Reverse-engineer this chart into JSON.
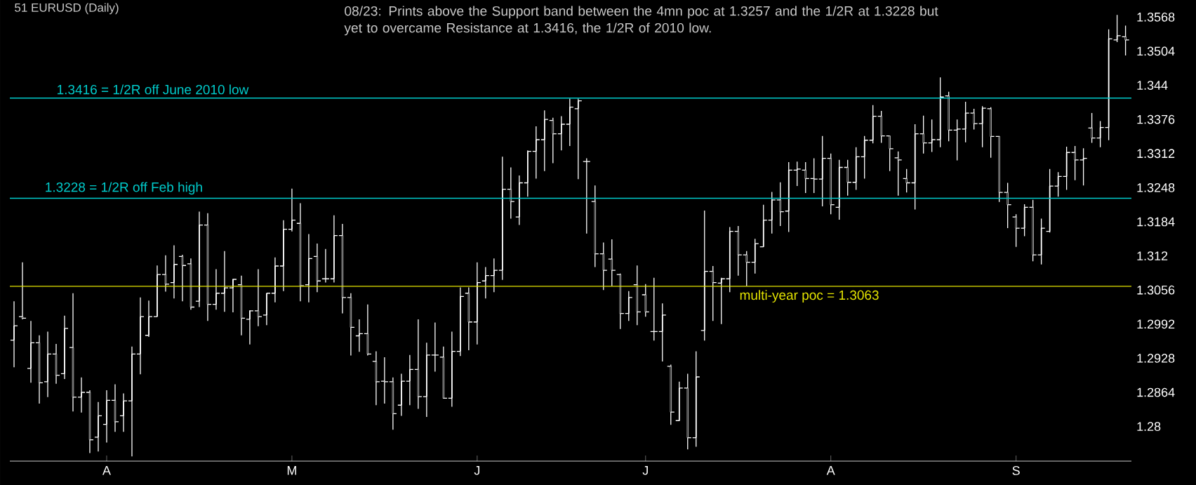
{
  "chart_data": {
    "type": "candlestick",
    "title": "51 EURUSD (Daily)",
    "annotations": [
      "08/23: Prints above the Support band between the 4mn poc at 1.3257 and the 1/2R at 1.3228 but yet to overcame Resistance at  1.3416, the 1/2R of 2010 low."
    ],
    "color": "#ffffff",
    "categories": [
      null,
      null,
      null,
      null,
      null,
      null,
      null,
      null,
      null,
      null,
      null,
      "A",
      null,
      null,
      null,
      null,
      null,
      null,
      null,
      null,
      null,
      null,
      null,
      null,
      null,
      null,
      null,
      null,
      null,
      null,
      null,
      null,
      null,
      "M",
      null,
      null,
      null,
      null,
      null,
      null,
      null,
      null,
      null,
      null,
      null,
      null,
      null,
      null,
      null,
      null,
      null,
      null,
      null,
      null,
      null,
      "J",
      null,
      null,
      null,
      null,
      null,
      null,
      null,
      null,
      null,
      null,
      null,
      null,
      null,
      null,
      null,
      null,
      null,
      null,
      null,
      "J",
      null,
      null,
      null,
      null,
      null,
      null,
      null,
      null,
      null,
      null,
      null,
      null,
      null,
      null,
      null,
      null,
      null,
      null,
      null,
      null,
      null,
      "A",
      null,
      null,
      null,
      null,
      null,
      null,
      null,
      null,
      null,
      null,
      null,
      null,
      null,
      null,
      null,
      null,
      null,
      null,
      null,
      null,
      null,
      "S",
      null,
      null,
      null,
      null,
      null,
      null,
      null,
      null,
      null,
      null,
      null,
      null,
      null
    ],
    "ohlc": [
      [
        1.2962,
        1.3035,
        1.2911,
        1.2989
      ],
      [
        1.3006,
        1.3108,
        1.3001,
        1.3003
      ],
      [
        1.2909,
        1.2998,
        1.2882,
        1.2957
      ],
      [
        1.2957,
        1.2971,
        1.2843,
        1.2882
      ],
      [
        1.2884,
        1.2978,
        1.2855,
        1.2936
      ],
      [
        1.2936,
        1.2955,
        1.288,
        1.2896
      ],
      [
        1.2899,
        1.3008,
        1.2889,
        1.2984
      ],
      [
        1.2948,
        1.305,
        1.2828,
        1.2855
      ],
      [
        1.2855,
        1.2892,
        1.2826,
        1.2864
      ],
      [
        1.2864,
        1.2868,
        1.275,
        1.2775
      ],
      [
        1.278,
        1.2846,
        1.2753,
        1.282
      ],
      [
        1.2804,
        1.2868,
        1.277,
        1.2849
      ],
      [
        1.2849,
        1.2879,
        1.279,
        1.2809
      ],
      [
        1.282,
        1.2862,
        1.279,
        1.2848
      ],
      [
        1.2848,
        1.295,
        1.2744,
        1.2936
      ],
      [
        1.2936,
        1.3042,
        1.2898,
        1.3006
      ],
      [
        1.2971,
        1.3036,
        1.2968,
        1.3006
      ],
      [
        1.3006,
        1.3102,
        1.3006,
        1.3085
      ],
      [
        1.3085,
        1.3121,
        1.3053,
        1.3067
      ],
      [
        1.307,
        1.314,
        1.304,
        1.3104
      ],
      [
        1.3119,
        1.3122,
        1.3035,
        1.3102
      ],
      [
        1.3105,
        1.3115,
        1.3019,
        1.3024
      ],
      [
        1.3035,
        1.3203,
        1.3024,
        1.3178
      ],
      [
        1.3178,
        1.32,
        1.2998,
        1.3029
      ],
      [
        1.3029,
        1.3095,
        1.3019,
        1.305
      ],
      [
        1.305,
        1.3129,
        1.3015,
        1.306
      ],
      [
        1.306,
        1.3077,
        1.3014,
        1.3076
      ],
      [
        1.3066,
        1.3083,
        1.2971,
        1.3003
      ],
      [
        1.3001,
        1.3018,
        1.2954,
        1.3017
      ],
      [
        1.3017,
        1.3095,
        1.2988,
        1.3006
      ],
      [
        1.3009,
        1.305,
        1.299,
        1.305
      ],
      [
        1.305,
        1.3117,
        1.3033,
        1.3101
      ],
      [
        1.3101,
        1.3187,
        1.3054,
        1.317
      ],
      [
        1.317,
        1.3246,
        1.3166,
        1.3187
      ],
      [
        1.3181,
        1.3219,
        1.3035,
        1.3064
      ],
      [
        1.3066,
        1.3161,
        1.3033,
        1.3115
      ],
      [
        1.3119,
        1.3143,
        1.3052,
        1.3073
      ],
      [
        1.3077,
        1.3133,
        1.307,
        1.3077
      ],
      [
        1.3077,
        1.3196,
        1.307,
        1.3158
      ],
      [
        1.3158,
        1.318,
        1.3012,
        1.3042
      ],
      [
        1.3042,
        1.305,
        1.2933,
        1.2986
      ],
      [
        1.297,
        1.3001,
        1.294,
        1.2974
      ],
      [
        1.2974,
        1.3029,
        1.2933,
        1.2936
      ],
      [
        1.2922,
        1.2941,
        1.284,
        1.2884
      ],
      [
        1.2885,
        1.293,
        1.2843,
        1.2884
      ],
      [
        1.2884,
        1.2892,
        1.2794,
        1.2824
      ],
      [
        1.284,
        1.2899,
        1.282,
        1.2885
      ],
      [
        1.2885,
        1.2934,
        1.284,
        1.2907
      ],
      [
        1.2907,
        1.3001,
        1.2833,
        1.2856
      ],
      [
        1.2856,
        1.2957,
        1.2818,
        1.2934
      ],
      [
        1.2934,
        1.2995,
        1.2903,
        1.2934
      ],
      [
        1.293,
        1.295,
        1.2852,
        1.2853
      ],
      [
        1.2853,
        1.2978,
        1.2837,
        1.2941
      ],
      [
        1.2941,
        1.3061,
        1.2932,
        1.3044
      ],
      [
        1.305,
        1.3061,
        1.2943,
        1.2996
      ],
      [
        1.2996,
        1.3108,
        1.2954,
        1.307
      ],
      [
        1.3073,
        1.3099,
        1.304,
        1.3083
      ],
      [
        1.3083,
        1.3115,
        1.3052,
        1.3093
      ],
      [
        1.3093,
        1.3306,
        1.3075,
        1.3245
      ],
      [
        1.3245,
        1.3286,
        1.319,
        1.3222
      ],
      [
        1.3193,
        1.3271,
        1.3178,
        1.3257
      ],
      [
        1.3257,
        1.3318,
        1.3231,
        1.3316
      ],
      [
        1.3316,
        1.3363,
        1.3265,
        1.3338
      ],
      [
        1.3338,
        1.3393,
        1.3279,
        1.3376
      ],
      [
        1.3374,
        1.3379,
        1.3294,
        1.3349
      ],
      [
        1.3349,
        1.3382,
        1.3318,
        1.3367
      ],
      [
        1.3367,
        1.3415,
        1.3326,
        1.3399
      ],
      [
        1.3396,
        1.3415,
        1.3264,
        1.3411
      ],
      [
        1.3297,
        1.3303,
        1.3162,
        1.3297
      ],
      [
        1.3222,
        1.3252,
        1.3099,
        1.3124
      ],
      [
        1.3124,
        1.3145,
        1.3056,
        1.3093
      ],
      [
        1.3114,
        1.3151,
        1.3063,
        1.3093
      ],
      [
        1.3085,
        1.3087,
        1.2983,
        1.3012
      ],
      [
        1.3012,
        1.3054,
        1.2998,
        1.3042
      ],
      [
        1.3066,
        1.3102,
        1.299,
        1.3015
      ],
      [
        1.3047,
        1.3067,
        1.3006,
        1.3015
      ],
      [
        1.2978,
        1.3079,
        1.2961,
        1.2978
      ],
      [
        1.2978,
        1.3031,
        1.2922,
        1.3009
      ],
      [
        1.2913,
        1.2916,
        1.2803,
        1.2827
      ],
      [
        1.2811,
        1.2884,
        1.281,
        1.2872
      ],
      [
        1.2872,
        1.2899,
        1.2757,
        1.2779
      ],
      [
        1.2779,
        1.2941,
        1.2762,
        1.2893
      ],
      [
        1.298,
        1.3205,
        1.2961,
        1.3091
      ],
      [
        1.3091,
        1.3101,
        1.2998,
        1.307
      ],
      [
        1.3069,
        1.3079,
        1.2992,
        1.3077
      ],
      [
        1.3077,
        1.3174,
        1.3052,
        1.3166
      ],
      [
        1.3166,
        1.3176,
        1.3083,
        1.3122
      ],
      [
        1.3122,
        1.3129,
        1.3063,
        1.3108
      ],
      [
        1.3108,
        1.3152,
        1.3087,
        1.3143
      ],
      [
        1.3137,
        1.3216,
        1.3137,
        1.3187
      ],
      [
        1.3187,
        1.324,
        1.3162,
        1.3225
      ],
      [
        1.3225,
        1.3258,
        1.3176,
        1.3203
      ],
      [
        1.3204,
        1.3296,
        1.3165,
        1.3281
      ],
      [
        1.3281,
        1.3297,
        1.3251,
        1.3283
      ],
      [
        1.3281,
        1.3296,
        1.3238,
        1.3265
      ],
      [
        1.3265,
        1.3303,
        1.3238,
        1.3264
      ],
      [
        1.3264,
        1.3345,
        1.3213,
        1.3303
      ],
      [
        1.3303,
        1.3312,
        1.3198,
        1.3216
      ],
      [
        1.3211,
        1.33,
        1.3188,
        1.3286
      ],
      [
        1.3286,
        1.33,
        1.3233,
        1.3258
      ],
      [
        1.3258,
        1.3324,
        1.3244,
        1.3306
      ],
      [
        1.3306,
        1.3345,
        1.3265,
        1.3337
      ],
      [
        1.3337,
        1.3403,
        1.3331,
        1.3382
      ],
      [
        1.3382,
        1.3392,
        1.3332,
        1.3345
      ],
      [
        1.3345,
        1.3345,
        1.3279,
        1.3321
      ],
      [
        1.3304,
        1.3316,
        1.3233,
        1.33
      ],
      [
        1.3265,
        1.3283,
        1.3239,
        1.3257
      ],
      [
        1.3257,
        1.3367,
        1.3207,
        1.3349
      ],
      [
        1.3349,
        1.3383,
        1.3312,
        1.3332
      ],
      [
        1.3332,
        1.3376,
        1.3315,
        1.3338
      ],
      [
        1.3338,
        1.3455,
        1.3324,
        1.3418
      ],
      [
        1.342,
        1.3428,
        1.3335,
        1.3356
      ],
      [
        1.3356,
        1.3376,
        1.3299,
        1.3358
      ],
      [
        1.3358,
        1.3409,
        1.3333,
        1.3388
      ],
      [
        1.3388,
        1.3396,
        1.3357,
        1.3368
      ],
      [
        1.3368,
        1.3401,
        1.3324,
        1.3397
      ],
      [
        1.3396,
        1.3399,
        1.3304,
        1.3344
      ],
      [
        1.3344,
        1.3345,
        1.3221,
        1.3239
      ],
      [
        1.3239,
        1.3257,
        1.3172,
        1.3216
      ],
      [
        1.3193,
        1.3198,
        1.3137,
        1.3172
      ],
      [
        1.3172,
        1.3217,
        1.3157,
        1.3211
      ],
      [
        1.3211,
        1.3225,
        1.311,
        1.3122
      ],
      [
        1.3122,
        1.319,
        1.3104,
        1.3172
      ],
      [
        1.3166,
        1.3283,
        1.3164,
        1.3251
      ],
      [
        1.3251,
        1.3277,
        1.3231,
        1.3269
      ],
      [
        1.3269,
        1.3325,
        1.3244,
        1.3314
      ],
      [
        1.3314,
        1.3326,
        1.3262,
        1.33
      ],
      [
        1.33,
        1.3322,
        1.3252,
        1.3303
      ],
      [
        1.336,
        1.3388,
        1.3332,
        1.3341
      ],
      [
        1.3341,
        1.3373,
        1.3324,
        1.3361
      ],
      [
        1.3361,
        1.3545,
        1.3337,
        1.3527
      ],
      [
        1.3525,
        1.3572,
        1.3521,
        1.3533
      ],
      [
        1.3531,
        1.3552,
        1.3496,
        1.3525
      ]
    ],
    "ylim": [
      1.2735,
      1.36
    ],
    "yticks": [
      1.28,
      1.2864,
      1.2928,
      1.2992,
      1.3056,
      1.312,
      1.3184,
      1.3248,
      1.3312,
      1.3376,
      1.344,
      1.3504,
      1.3568
    ],
    "ref_lines": [
      {
        "axis": "y",
        "value": 1.3416,
        "label": "1.3416 = 1/2R off June 2010 low",
        "color": "#00cccc"
      },
      {
        "axis": "y",
        "value": 1.3228,
        "label": "1.3228 = 1/2R off Feb high",
        "color": "#00cccc"
      },
      {
        "axis": "y",
        "value": 1.3063,
        "label": "multi-year poc = 1.3063",
        "color": "#e6e600"
      }
    ]
  }
}
